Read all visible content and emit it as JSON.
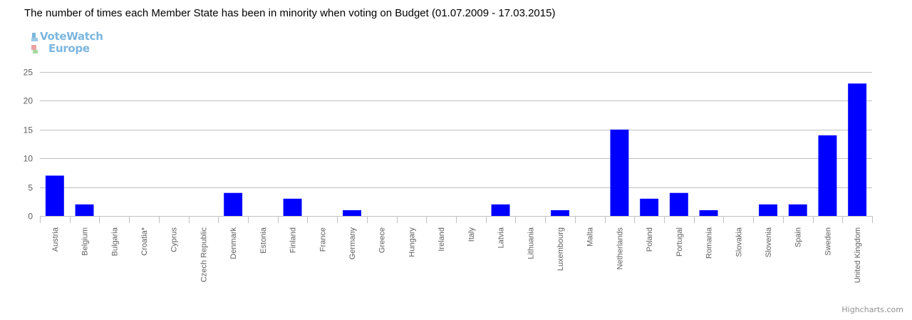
{
  "title": "The number of times each Member State has been in minority when voting on Budget (01.07.2009 - 17.03.2015)",
  "logo": {
    "line1": "VoteWatch",
    "line2": "Europe"
  },
  "credit": "Highcharts.com",
  "colors": {
    "bar": "#0000ff",
    "grid": "#c0c0c0",
    "axis_text": "#606060"
  },
  "chart_data": {
    "type": "bar",
    "title": "The number of times each Member State has been in minority when voting on Budget (01.07.2009 - 17.03.2015)",
    "xlabel": "",
    "ylabel": "",
    "ylim": [
      0,
      25
    ],
    "yticks": [
      0,
      5,
      10,
      15,
      20,
      25
    ],
    "grid": true,
    "legend": "none",
    "categories": [
      "Austria",
      "Belgium",
      "Bulgaria",
      "Croatia*",
      "Cyprus",
      "Czech Republic",
      "Denmark",
      "Estonia",
      "Finland",
      "France",
      "Germany",
      "Greece",
      "Hungary",
      "Ireland",
      "Italy",
      "Latvia",
      "Lithuania",
      "Luxembourg",
      "Malta",
      "Netherlands",
      "Poland",
      "Portugal",
      "Romania",
      "Slovakia",
      "Slovenia",
      "Spain",
      "Sweden",
      "United Kingdom"
    ],
    "values": [
      7,
      2,
      0,
      0,
      0,
      0,
      4,
      0,
      3,
      0,
      1,
      0,
      0,
      0,
      0,
      2,
      0,
      1,
      0,
      15,
      3,
      4,
      1,
      0,
      2,
      2,
      14,
      23
    ]
  }
}
